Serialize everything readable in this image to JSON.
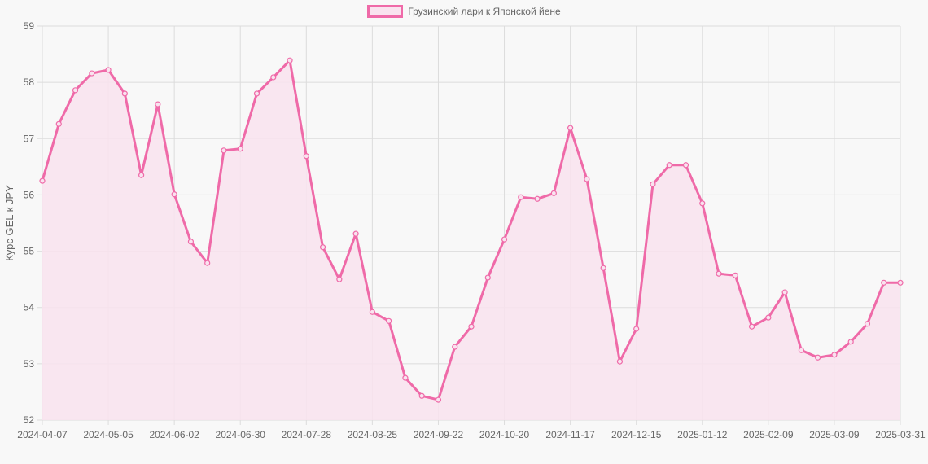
{
  "legend": {
    "label": "Грузинский лари к Японской йене"
  },
  "colors": {
    "line": "#ef6aa8",
    "fill": "#f9e3ef",
    "grid": "#dcdcdc",
    "background": "#f8f8f8"
  },
  "chart_data": {
    "type": "line",
    "title": "",
    "xlabel": "",
    "ylabel": "Курс GEL к JPY",
    "ylim": [
      52,
      59
    ],
    "yticks": [
      52,
      53,
      54,
      55,
      56,
      57,
      58,
      59
    ],
    "xtick_labels": [
      "2024-04-07",
      "2024-05-05",
      "2024-06-02",
      "2024-06-30",
      "2024-07-28",
      "2024-08-25",
      "2024-09-22",
      "2024-10-20",
      "2024-11-17",
      "2024-12-15",
      "2025-01-12",
      "2025-02-09",
      "2025-03-09",
      "2025-03-31"
    ],
    "grid": true,
    "legend_position": "top",
    "series": [
      {
        "name": "Грузинский лари к Японской йене",
        "fill": true,
        "x": [
          "2024-04-07",
          "2024-04-14",
          "2024-04-21",
          "2024-04-28",
          "2024-05-05",
          "2024-05-12",
          "2024-05-19",
          "2024-05-26",
          "2024-06-02",
          "2024-06-09",
          "2024-06-16",
          "2024-06-23",
          "2024-06-30",
          "2024-07-07",
          "2024-07-14",
          "2024-07-21",
          "2024-07-28",
          "2024-08-04",
          "2024-08-11",
          "2024-08-18",
          "2024-08-25",
          "2024-09-01",
          "2024-09-08",
          "2024-09-15",
          "2024-09-22",
          "2024-09-29",
          "2024-10-06",
          "2024-10-13",
          "2024-10-20",
          "2024-10-27",
          "2024-11-03",
          "2024-11-10",
          "2024-11-17",
          "2024-11-24",
          "2024-12-01",
          "2024-12-08",
          "2024-12-15",
          "2024-12-22",
          "2024-12-29",
          "2025-01-05",
          "2025-01-12",
          "2025-01-19",
          "2025-01-26",
          "2025-02-02",
          "2025-02-09",
          "2025-02-16",
          "2025-02-23",
          "2025-03-02",
          "2025-03-09",
          "2025-03-16",
          "2025-03-23",
          "2025-03-30",
          "2025-03-31"
        ],
        "values": [
          56.25,
          57.26,
          57.86,
          58.16,
          58.22,
          57.8,
          56.35,
          57.61,
          56.01,
          55.17,
          54.79,
          56.79,
          56.82,
          57.8,
          58.09,
          58.39,
          56.69,
          55.07,
          54.5,
          55.31,
          53.92,
          53.76,
          52.75,
          52.43,
          52.36,
          53.3,
          53.66,
          54.53,
          55.21,
          55.96,
          55.93,
          56.03,
          57.19,
          56.28,
          54.7,
          53.04,
          53.62,
          56.19,
          56.53,
          56.53,
          55.85,
          54.6,
          54.57,
          53.66,
          53.82,
          54.27,
          53.24,
          53.11,
          53.16,
          53.39,
          53.71,
          54.44,
          54.44
        ]
      }
    ]
  }
}
